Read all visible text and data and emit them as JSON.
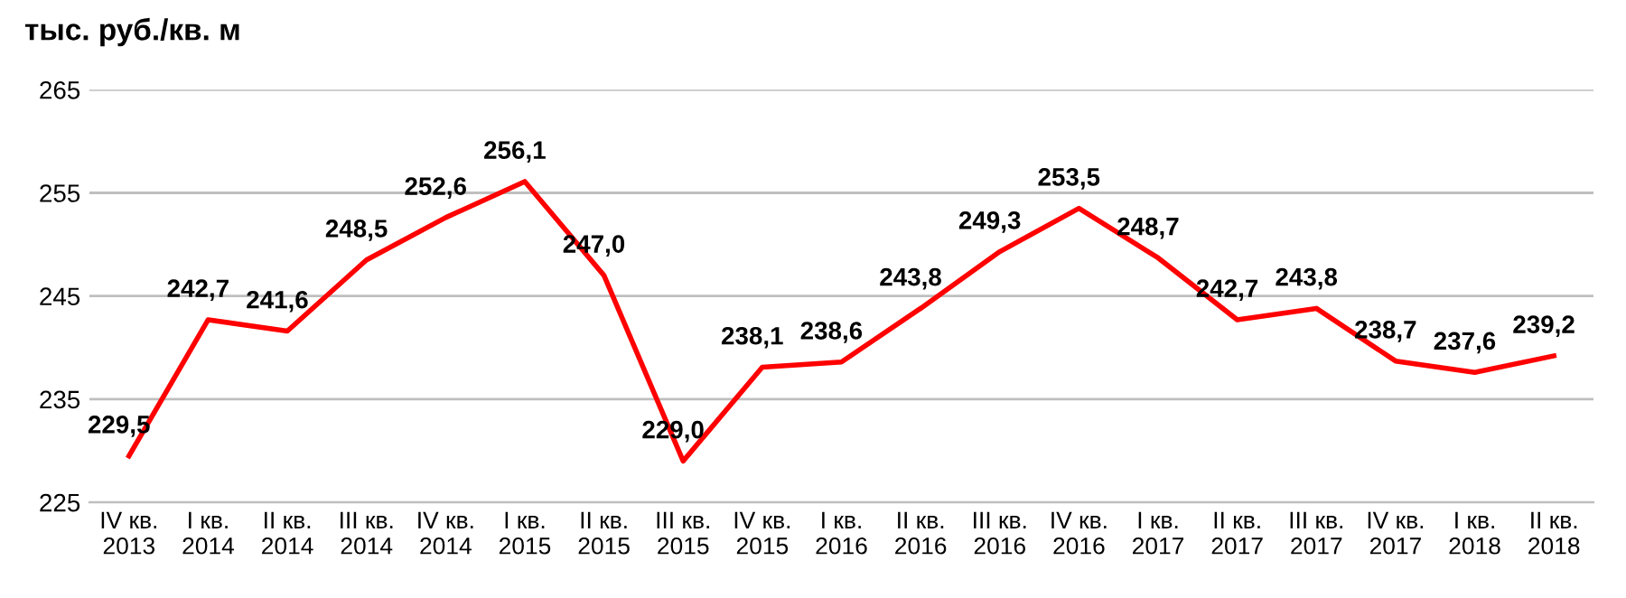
{
  "chart_data": {
    "type": "line",
    "ylabel": "тыс. руб./кв. м",
    "categories": [
      "IV кв.\n2013",
      "I кв.\n2014",
      "II кв.\n2014",
      "III кв.\n2014",
      "IV кв.\n2014",
      "I кв.\n2015",
      "II кв.\n2015",
      "III кв.\n2015",
      "IV кв.\n2015",
      "I кв.\n2016",
      "II кв.\n2016",
      "III кв.\n2016",
      "IV кв.\n2016",
      "I кв.\n2017",
      "II кв.\n2017",
      "III кв.\n2017",
      "IV кв.\n2017",
      "I кв.\n2018",
      "II кв.\n2018"
    ],
    "series": [
      {
        "color": "#ff0000",
        "values": [
          229.5,
          242.7,
          241.6,
          248.5,
          252.6,
          256.1,
          247.0,
          229.0,
          238.1,
          238.6,
          243.8,
          249.3,
          253.5,
          248.7,
          242.7,
          243.8,
          238.7,
          237.6,
          239.2
        ],
        "value_labels": [
          "229,5",
          "242,7",
          "241,6",
          "248,5",
          "252,6",
          "256,1",
          "247,0",
          "229,0",
          "238,1",
          "238,6",
          "243,8",
          "249,3",
          "253,5",
          "248,7",
          "242,7",
          "243,8",
          "238,7",
          "237,6",
          "239,2"
        ]
      }
    ],
    "ylim": [
      225,
      265
    ],
    "yticks": [
      225,
      235,
      245,
      255,
      265
    ],
    "grid": "y",
    "legend": false,
    "marker": "none",
    "line_style": "solid"
  }
}
